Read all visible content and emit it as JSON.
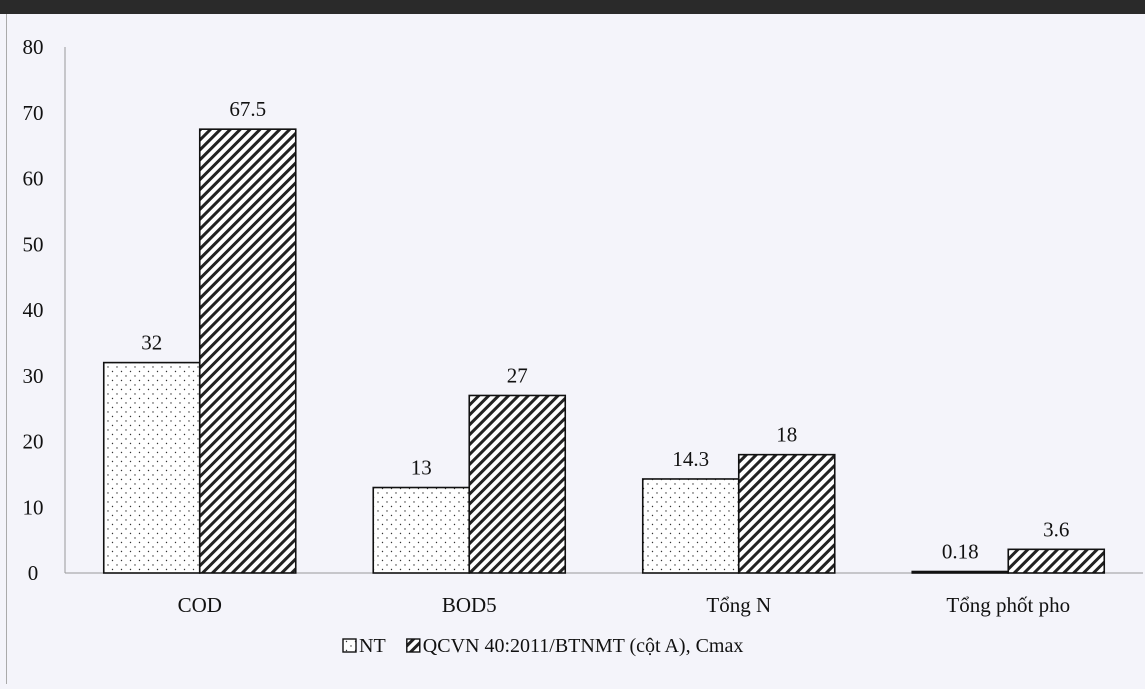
{
  "chart_data": {
    "type": "bar",
    "title": "",
    "xlabel": "",
    "ylabel": "",
    "ylim": [
      0,
      80
    ],
    "yticks": [
      0,
      10,
      20,
      30,
      40,
      50,
      60,
      70,
      80
    ],
    "grid": false,
    "legend_position": "bottom",
    "categories": [
      "COD",
      "BOD5",
      "Tổng N",
      "Tổng phốt pho"
    ],
    "series": [
      {
        "name": "NT",
        "values": [
          32,
          13,
          14.3,
          0.18
        ],
        "labels": [
          "32",
          "13",
          "14.3",
          "0.18"
        ],
        "pattern": "dotted"
      },
      {
        "name": "QCVN 40:2011/BTNMT (cột A), Cmax",
        "values": [
          67.5,
          27,
          18,
          3.6
        ],
        "labels": [
          "67.5",
          "27",
          "18",
          "3.6"
        ],
        "pattern": "diagonal-hatch"
      }
    ],
    "colors": {
      "background": "#f4f4fa",
      "bar_fill": "#ffffff",
      "stroke": "#111111",
      "axis": "#999999"
    }
  }
}
